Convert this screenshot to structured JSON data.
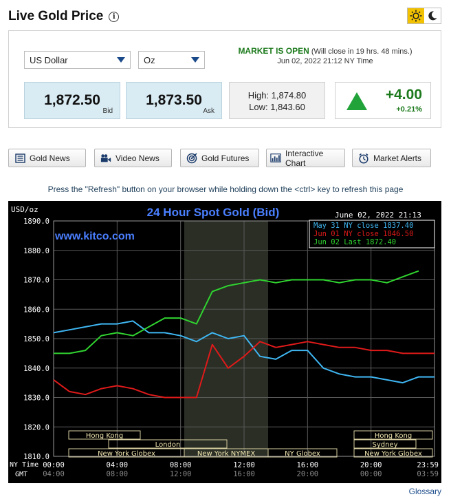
{
  "page_title": "Live Gold Price",
  "currency_select": {
    "value": "US Dollar"
  },
  "unit_select": {
    "value": "Oz"
  },
  "market": {
    "status": "MARKET IS OPEN",
    "close_note": "(Will close in 19 hrs. 48 mins.)",
    "datetime": "Jun 02, 2022 21:12 NY Time"
  },
  "bid": {
    "value": "1,872.50",
    "label": "Bid"
  },
  "ask": {
    "value": "1,873.50",
    "label": "Ask"
  },
  "range": {
    "high": "High: 1,874.80",
    "low": "Low: 1,843.60"
  },
  "change": {
    "value": "+4.00",
    "percent": "+0.21%",
    "direction": "up",
    "color": "#1c7a1c"
  },
  "buttons": [
    {
      "label": "Gold News",
      "icon": "newspaper-icon"
    },
    {
      "label": "Video News",
      "icon": "video-camera-icon"
    },
    {
      "label": "Gold Futures",
      "icon": "target-icon"
    },
    {
      "label": "Interactive Chart",
      "icon": "bar-chart-icon"
    },
    {
      "label": "Market Alerts",
      "icon": "alarm-clock-icon"
    }
  ],
  "refresh_note": "Press the \"Refresh\" button on your browser while holding down the <ctrl> key to refresh this page",
  "glossary": "Glossary",
  "chart_data": {
    "type": "line",
    "title": "24 Hour Spot Gold (Bid)",
    "timestamp": "June 02, 2022 21:13",
    "watermark": "www.kitco.com",
    "ylabel": "USD/oz",
    "ylim": [
      1810,
      1890
    ],
    "y_ticks": [
      "1890.0",
      "1880.0",
      "1870.0",
      "1860.0",
      "1850.0",
      "1840.0",
      "1830.0",
      "1820.0",
      "1810.0"
    ],
    "x_ticks_ny": [
      "00:00",
      "04:00",
      "08:00",
      "12:00",
      "16:00",
      "20:00",
      "23:59"
    ],
    "x_ticks_gmt": [
      "04:00",
      "08:00",
      "12:00",
      "16:00",
      "20:00",
      "00:00",
      "03:59"
    ],
    "x_row_labels": {
      "ny": "NY Time",
      "gmt": "GMT"
    },
    "grid": true,
    "legend_position": "top-right",
    "sessions": [
      {
        "label": "Hong Kong"
      },
      {
        "label": "London"
      },
      {
        "label": "New York Globex"
      },
      {
        "label": "New York NYMEX"
      },
      {
        "label": "NY Globex"
      },
      {
        "label": "Sydney"
      },
      {
        "label": "Hong Kong"
      },
      {
        "label": "New York Globex"
      }
    ],
    "series": [
      {
        "name": "May 31 NY close 1837.40",
        "color": "#3fb6f2",
        "x": [
          0,
          1,
          2,
          3,
          4,
          5,
          6,
          7,
          8,
          9,
          10,
          11,
          12,
          13,
          14,
          15,
          16,
          17,
          18,
          19,
          20,
          21,
          22,
          23,
          24
        ],
        "y": [
          1852,
          1853,
          1854,
          1855,
          1855,
          1856,
          1852,
          1852,
          1851,
          1849,
          1852,
          1850,
          1851,
          1844,
          1843,
          1846,
          1846,
          1840,
          1838,
          1837,
          1837,
          1836,
          1835,
          1837,
          1837
        ]
      },
      {
        "name": "Jun 01 NY close 1846.50",
        "color": "#e01a1a",
        "x": [
          0,
          1,
          2,
          3,
          4,
          5,
          6,
          7,
          8,
          9,
          10,
          11,
          12,
          13,
          14,
          15,
          16,
          17,
          18,
          19,
          20,
          21,
          22,
          23,
          24
        ],
        "y": [
          1836,
          1832,
          1831,
          1833,
          1834,
          1833,
          1831,
          1830,
          1830,
          1830,
          1848,
          1840,
          1844,
          1849,
          1847,
          1848,
          1849,
          1848,
          1847,
          1847,
          1846,
          1846,
          1845,
          1845,
          1845
        ]
      },
      {
        "name": "Jun 02 Last 1872.40",
        "color": "#30d430",
        "x": [
          0,
          1,
          2,
          3,
          4,
          5,
          6,
          7,
          8,
          9,
          10,
          11,
          12,
          13,
          14,
          15,
          16,
          17,
          18,
          19,
          20,
          21,
          22,
          23
        ],
        "y": [
          1845,
          1845,
          1846,
          1851,
          1852,
          1851,
          1854,
          1857,
          1857,
          1855,
          1866,
          1868,
          1869,
          1870,
          1869,
          1870,
          1870,
          1870,
          1869,
          1870,
          1870,
          1869,
          1871,
          1873
        ]
      }
    ]
  }
}
